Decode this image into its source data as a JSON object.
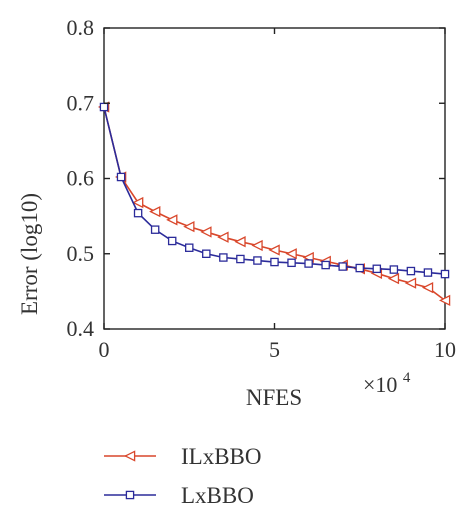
{
  "chart_data": {
    "type": "line",
    "xlabel": "NFES",
    "ylabel": "Error (log10)",
    "x_multiplier_label": "×10",
    "x_multiplier_exponent": "4",
    "xlim": [
      0,
      10
    ],
    "ylim": [
      0.4,
      0.8
    ],
    "xticks": [
      0,
      5,
      10
    ],
    "yticks": [
      0.4,
      0.5,
      0.6,
      0.7,
      0.8
    ],
    "xtick_labels": [
      "0",
      "5",
      "10"
    ],
    "ytick_labels": [
      "0.4",
      "0.5",
      "0.6",
      "0.7",
      "0.8"
    ],
    "grid": false,
    "legend_position": "bottom-left, below plot",
    "series": [
      {
        "name": "ILxBBO",
        "color": "#d9472b",
        "marker": "triangle-left",
        "x": [
          0,
          0.5,
          1.0,
          1.5,
          2.0,
          2.5,
          3.0,
          3.5,
          4.0,
          4.5,
          5.0,
          5.5,
          6.0,
          6.5,
          7.0,
          7.5,
          8.0,
          8.5,
          9.0,
          9.5,
          10.0
        ],
        "y": [
          0.695,
          0.602,
          0.568,
          0.556,
          0.545,
          0.536,
          0.529,
          0.522,
          0.516,
          0.511,
          0.505,
          0.5,
          0.495,
          0.49,
          0.485,
          0.48,
          0.474,
          0.467,
          0.461,
          0.455,
          0.438
        ]
      },
      {
        "name": "LxBBO",
        "color": "#2b2b9a",
        "marker": "square",
        "x": [
          0,
          0.5,
          1.0,
          1.5,
          2.0,
          2.5,
          3.0,
          3.5,
          4.0,
          4.5,
          5.0,
          5.5,
          6.0,
          6.5,
          7.0,
          7.5,
          8.0,
          8.5,
          9.0,
          9.5,
          10.0
        ],
        "y": [
          0.695,
          0.602,
          0.554,
          0.532,
          0.517,
          0.508,
          0.5,
          0.495,
          0.493,
          0.491,
          0.489,
          0.488,
          0.487,
          0.485,
          0.483,
          0.481,
          0.48,
          0.479,
          0.477,
          0.475,
          0.473
        ]
      }
    ]
  }
}
